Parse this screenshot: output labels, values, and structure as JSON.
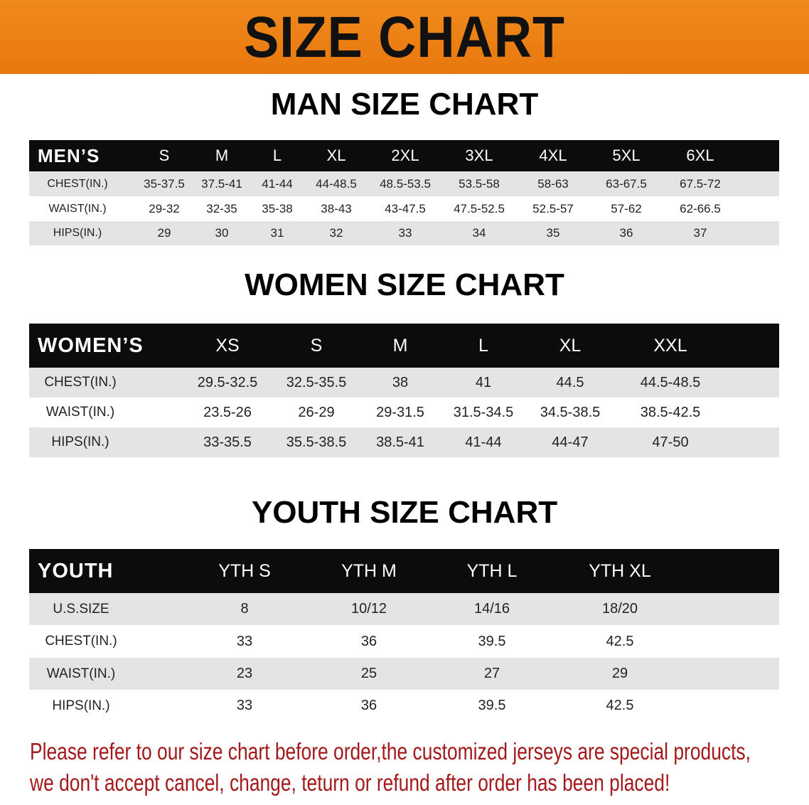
{
  "banner": {
    "title": "SIZE CHART"
  },
  "men": {
    "title": "MAN SIZE CHART",
    "header": [
      "MEN’S",
      "S",
      "M",
      "L",
      "XL",
      "2XL",
      "3XL",
      "4XL",
      "5XL",
      "6XL"
    ],
    "rows": [
      [
        "CHEST(IN.)",
        "35-37.5",
        "37.5-41",
        "41-44",
        "44-48.5",
        "48.5-53.5",
        "53.5-58",
        "58-63",
        "63-67.5",
        "67.5-72"
      ],
      [
        "WAIST(IN.)",
        "29-32",
        "32-35",
        "35-38",
        "38-43",
        "43-47.5",
        "47.5-52.5",
        "52.5-57",
        "57-62",
        "62-66.5"
      ],
      [
        "HIPS(IN.)",
        "29",
        "30",
        "31",
        "32",
        "33",
        "34",
        "35",
        "36",
        "37"
      ]
    ]
  },
  "women": {
    "title": "WOMEN SIZE CHART",
    "header": [
      "WOMEN’S",
      "XS",
      "S",
      "M",
      "L",
      "XL",
      "XXL"
    ],
    "rows": [
      [
        "CHEST(IN.)",
        "29.5-32.5",
        "32.5-35.5",
        "38",
        "41",
        "44.5",
        "44.5-48.5"
      ],
      [
        "WAIST(IN.)",
        "23.5-26",
        "26-29",
        "29-31.5",
        "31.5-34.5",
        "34.5-38.5",
        "38.5-42.5"
      ],
      [
        "HIPS(IN.)",
        "33-35.5",
        "35.5-38.5",
        "38.5-41",
        "41-44",
        "44-47",
        "47-50"
      ]
    ]
  },
  "youth": {
    "title": "YOUTH SIZE CHART",
    "header": [
      "YOUTH",
      "YTH S",
      "YTH M",
      "YTH L",
      "YTH XL"
    ],
    "rows": [
      [
        "U.S.SIZE",
        "8",
        "10/12",
        "14/16",
        "18/20"
      ],
      [
        "CHEST(IN.)",
        "33",
        "36",
        "39.5",
        "42.5"
      ],
      [
        "WAIST(IN.)",
        "23",
        "25",
        "27",
        "29"
      ],
      [
        "HIPS(IN.)",
        "33",
        "36",
        "39.5",
        "42.5"
      ]
    ]
  },
  "footer": {
    "line1": "Please refer to our size chart before order,the customized jerseys are special products,",
    "line2": "we don't accept cancel, change, teturn or refund after order has been placed!"
  },
  "colors": {
    "banner": "#e8780e",
    "header_bg": "#0c0c0c",
    "row_gray": "#e4e4e6",
    "footer_text": "#a3191b"
  }
}
